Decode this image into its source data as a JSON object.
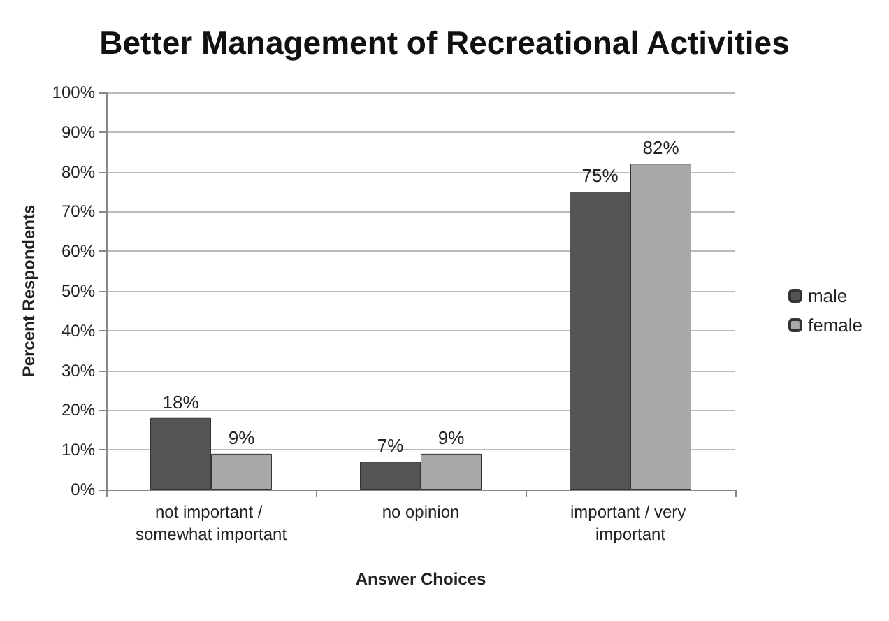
{
  "chart_data": {
    "type": "bar",
    "title": "Better Management of Recreational Activities",
    "xlabel": "Answer Choices",
    "ylabel": "Percent Respondents",
    "categories": [
      "not important / somewhat important",
      "no opinion",
      "important / very important"
    ],
    "series": [
      {
        "name": "male",
        "color": "#555555",
        "values": [
          18,
          7,
          75
        ],
        "value_labels": [
          "18%",
          "7%",
          "75%"
        ]
      },
      {
        "name": "female",
        "color": "#a8a8a8",
        "values": [
          9,
          9,
          82
        ],
        "value_labels": [
          "9%",
          "9%",
          "82%"
        ]
      }
    ],
    "ylim": [
      0,
      100
    ],
    "yticks": [
      {
        "value": 0,
        "label": "0%"
      },
      {
        "value": 10,
        "label": "10%"
      },
      {
        "value": 20,
        "label": "20%"
      },
      {
        "value": 30,
        "label": "30%"
      },
      {
        "value": 40,
        "label": "40%"
      },
      {
        "value": 50,
        "label": "50%"
      },
      {
        "value": 60,
        "label": "60%"
      },
      {
        "value": 70,
        "label": "70%"
      },
      {
        "value": 80,
        "label": "80%"
      },
      {
        "value": 90,
        "label": "90%"
      },
      {
        "value": 100,
        "label": "100%"
      }
    ],
    "grid": "y",
    "legend": "right"
  }
}
